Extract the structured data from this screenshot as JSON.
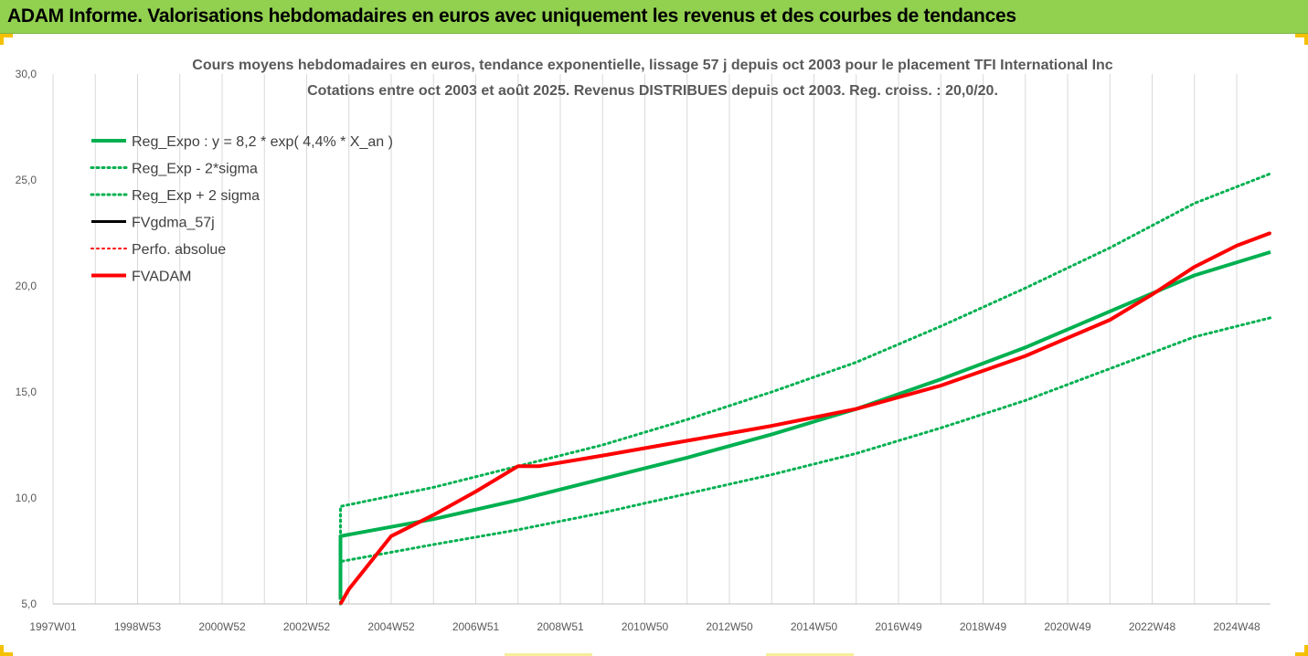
{
  "banner": {
    "title": "ADAM Informe. Valorisations hebdomadaires en euros avec uniquement les revenus et des courbes de tendances"
  },
  "colors": {
    "banner_bg": "#92d050",
    "green": "#00b050",
    "red": "#ff0000",
    "black": "#000000",
    "grid": "#d9d9d9",
    "axis_text": "#595959"
  },
  "chart_data": {
    "type": "line",
    "title": "Cours moyens hebdomadaires en euros, tendance exponentielle, lissage 57 j depuis oct 2003 pour le placement TFI International Inc",
    "subtitle": "Cotations entre oct 2003 et août 2025. Revenus DISTRIBUES depuis oct 2003. Reg. croiss. : 20,0/20.",
    "xlabel": "",
    "ylabel": "",
    "ylim": [
      5,
      30
    ],
    "yticks": [
      "5,0",
      "10,0",
      "15,0",
      "20,0",
      "25,0",
      "30,0"
    ],
    "ytick_values": [
      5,
      10,
      15,
      20,
      25,
      30
    ],
    "xlim": [
      1997.0,
      2025.8
    ],
    "xticks": [
      "1997W01",
      "1998W53",
      "2000W52",
      "2002W52",
      "2004W52",
      "2006W51",
      "2008W51",
      "2010W50",
      "2012W50",
      "2014W50",
      "2016W49",
      "2018W49",
      "2020W49",
      "2022W48",
      "2024W48"
    ],
    "xtick_values": [
      1997.0,
      1999.0,
      2001.0,
      2003.0,
      2005.0,
      2007.0,
      2009.0,
      2011.0,
      2013.0,
      2015.0,
      2017.0,
      2019.0,
      2021.0,
      2023.0,
      2025.0
    ],
    "grid": "vertical",
    "legend_position": "top-left",
    "series": [
      {
        "name": "Reg_Expo : y = 8,2 * exp( 4,4% *  X_an )",
        "color": "#00b050",
        "style": "solid",
        "width": 4,
        "x": [
          2003.8,
          2003.8,
          2006,
          2008,
          2010,
          2012,
          2014,
          2016,
          2018,
          2020,
          2022,
          2024,
          2025.8
        ],
        "y": [
          5.2,
          8.2,
          9.0,
          9.9,
          10.9,
          11.9,
          13.0,
          14.2,
          15.6,
          17.1,
          18.8,
          20.5,
          21.6
        ]
      },
      {
        "name": "Reg_Exp - 2*sigma",
        "color": "#00b050",
        "style": "dotted",
        "width": 3,
        "x": [
          2003.8,
          2003.8,
          2006,
          2008,
          2010,
          2012,
          2014,
          2016,
          2018,
          2020,
          2022,
          2024,
          2025.8
        ],
        "y": [
          5.0,
          7.0,
          7.8,
          8.5,
          9.3,
          10.2,
          11.1,
          12.1,
          13.3,
          14.6,
          16.1,
          17.6,
          18.5
        ]
      },
      {
        "name": "Reg_Exp + 2 sigma",
        "color": "#00b050",
        "style": "dotted",
        "width": 3,
        "x": [
          2003.8,
          2003.8,
          2006,
          2008,
          2010,
          2012,
          2014,
          2016,
          2018,
          2020,
          2022,
          2024,
          2025.8
        ],
        "y": [
          5.0,
          9.6,
          10.5,
          11.5,
          12.5,
          13.7,
          15.0,
          16.4,
          18.1,
          19.9,
          21.8,
          23.9,
          25.3
        ]
      },
      {
        "name": "FVgdma_57j",
        "color": "#000000",
        "style": "solid",
        "width": 3,
        "x": [
          2003.8,
          2004.0,
          2005.0,
          2006.0,
          2007.0,
          2008.0,
          2008.5,
          2010.0,
          2012.0,
          2014.0,
          2016.0,
          2018.0,
          2020.0,
          2022.0,
          2023.0,
          2024.0,
          2025.0,
          2025.8
        ],
        "y": [
          5.0,
          5.7,
          8.2,
          9.2,
          10.3,
          11.5,
          11.5,
          12.0,
          12.7,
          13.4,
          14.2,
          15.3,
          16.7,
          18.4,
          19.6,
          20.9,
          21.9,
          22.5
        ]
      },
      {
        "name": "Perfo. absolue",
        "color": "#ff0000",
        "style": "dotted",
        "width": 2,
        "x": [
          2003.8,
          2004.0,
          2005.0,
          2006.0,
          2007.0,
          2008.0,
          2008.5,
          2010.0,
          2012.0,
          2014.0,
          2016.0,
          2018.0,
          2020.0,
          2022.0,
          2023.0,
          2024.0,
          2025.0,
          2025.8
        ],
        "y": [
          5.0,
          5.7,
          8.2,
          9.2,
          10.3,
          11.5,
          11.5,
          12.0,
          12.7,
          13.4,
          14.2,
          15.3,
          16.7,
          18.4,
          19.6,
          20.9,
          21.9,
          22.5
        ]
      },
      {
        "name": "FVADAM",
        "color": "#ff0000",
        "style": "solid",
        "width": 4,
        "x": [
          2003.8,
          2004.0,
          2005.0,
          2006.0,
          2007.0,
          2008.0,
          2008.5,
          2010.0,
          2012.0,
          2014.0,
          2016.0,
          2018.0,
          2020.0,
          2022.0,
          2023.0,
          2024.0,
          2025.0,
          2025.8
        ],
        "y": [
          5.0,
          5.7,
          8.2,
          9.2,
          10.3,
          11.5,
          11.5,
          12.0,
          12.7,
          13.4,
          14.2,
          15.3,
          16.7,
          18.4,
          19.6,
          20.9,
          21.9,
          22.5
        ]
      }
    ]
  }
}
